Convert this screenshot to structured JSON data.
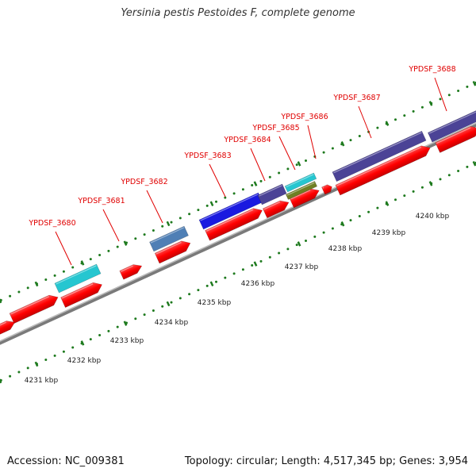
{
  "title": "Yersinia pestis Pestoides F, complete genome",
  "footer": {
    "accession": "Accession: NC_009381",
    "summary": "Topology: circular; Length: 4,517,345 bp; Genes: 3,954"
  },
  "colors": {
    "cds_red": "#ff0000",
    "backbone": "#999999",
    "tick": "#1e7a1e",
    "label_red": "#e00000",
    "cyan": "#26c6d0",
    "steelblue": "#4f7fb5",
    "blue": "#1a1ae0",
    "slateblue": "#4b4396",
    "olive": "#6f7f23"
  },
  "scale_labels": [
    {
      "kbp": 4231,
      "text": "4231 kbp"
    },
    {
      "kbp": 4232,
      "text": "4232 kbp"
    },
    {
      "kbp": 4233,
      "text": "4233 kbp"
    },
    {
      "kbp": 4234,
      "text": "4234 kbp"
    },
    {
      "kbp": 4235,
      "text": "4235 kbp"
    },
    {
      "kbp": 4236,
      "text": "4236 kbp"
    },
    {
      "kbp": 4237,
      "text": "4237 kbp"
    },
    {
      "kbp": 4238,
      "text": "4238 kbp"
    },
    {
      "kbp": 4239,
      "text": "4239 kbp"
    },
    {
      "kbp": 4240,
      "text": "4240 kbp"
    }
  ],
  "gene_labels": [
    "YPDSF_3680",
    "YPDSF_3681",
    "YPDSF_3682",
    "YPDSF_3683",
    "YPDSF_3684",
    "YPDSF_3685",
    "YPDSF_3686",
    "YPDSF_3687",
    "YPDSF_3688"
  ]
}
